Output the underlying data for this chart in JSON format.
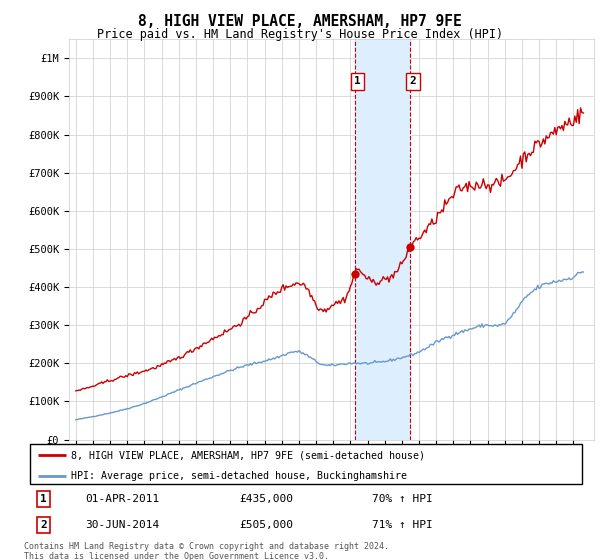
{
  "title": "8, HIGH VIEW PLACE, AMERSHAM, HP7 9FE",
  "subtitle": "Price paid vs. HM Land Registry's House Price Index (HPI)",
  "ylim": [
    0,
    1050000
  ],
  "yticks": [
    0,
    100000,
    200000,
    300000,
    400000,
    500000,
    600000,
    700000,
    800000,
    900000,
    1000000
  ],
  "ytick_labels": [
    "£0",
    "£100K",
    "£200K",
    "£300K",
    "£400K",
    "£500K",
    "£600K",
    "£700K",
    "£800K",
    "£900K",
    "£1M"
  ],
  "sale1_date": 2011.25,
  "sale1_price": 435000,
  "sale1_label": "1",
  "sale1_date_str": "01-APR-2011",
  "sale1_hpi_pct": "70% ↑ HPI",
  "sale2_date": 2014.5,
  "sale2_price": 505000,
  "sale2_label": "2",
  "sale2_date_str": "30-JUN-2014",
  "sale2_hpi_pct": "71% ↑ HPI",
  "red_line_color": "#cc0000",
  "blue_line_color": "#6699cc",
  "shade_color": "#ddeeff",
  "grid_color": "#cccccc",
  "background_color": "#ffffff",
  "legend_label_red": "8, HIGH VIEW PLACE, AMERSHAM, HP7 9FE (semi-detached house)",
  "legend_label_blue": "HPI: Average price, semi-detached house, Buckinghamshire",
  "footnote": "Contains HM Land Registry data © Crown copyright and database right 2024.\nThis data is licensed under the Open Government Licence v3.0."
}
